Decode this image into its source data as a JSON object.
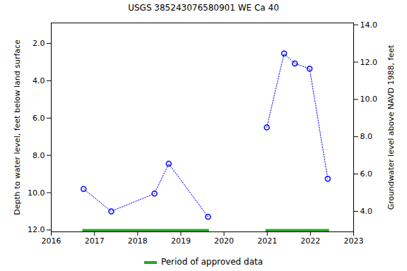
{
  "chart_data": {
    "type": "line",
    "title": "USGS 385243076580901 WE Ca 40",
    "x_label": null,
    "y_label": "Depth to water level, feet below land surface",
    "y2_label": "Groundwater level above NAVD 1988, feet",
    "x": [
      2016.75,
      2017.39,
      2018.39,
      2018.72,
      2019.63,
      2020.3,
      2020.99,
      2021.39,
      2021.64,
      2021.98,
      2022.4
    ],
    "series": [
      {
        "name": "Depth to water level",
        "color": "#0000ff",
        "marker": "circle",
        "line_style": "dotted",
        "values": [
          9.8,
          11.0,
          10.05,
          8.45,
          11.3,
          null,
          6.5,
          2.54,
          3.08,
          3.35,
          9.25
        ]
      }
    ],
    "approved_periods": {
      "name": "Period of approved data",
      "color": "#22a822",
      "ranges": [
        [
          2016.72,
          2019.65
        ],
        [
          2020.96,
          2022.43
        ]
      ]
    },
    "xlim": [
      2016,
      2023
    ],
    "xticks": [
      2016,
      2017,
      2018,
      2019,
      2020,
      2021,
      2022,
      2023
    ],
    "ylim": [
      12.1,
      0.9
    ],
    "yticks": [
      {
        "value": 2,
        "label": "2.0"
      },
      {
        "value": 4,
        "label": "4.0"
      },
      {
        "value": 6,
        "label": "6.0"
      },
      {
        "value": 8,
        "label": "8.0"
      },
      {
        "value": 10,
        "label": "10.0"
      },
      {
        "value": 12,
        "label": "12.0"
      }
    ],
    "y2lim": [
      2.9,
      14.1
    ],
    "y2ticks": [
      {
        "value": 4,
        "label": "4.0"
      },
      {
        "value": 6,
        "label": "6.0"
      },
      {
        "value": 8,
        "label": "8.0"
      },
      {
        "value": 10,
        "label": "10.0"
      },
      {
        "value": 12,
        "label": "12.0"
      },
      {
        "value": 14,
        "label": "14.0"
      }
    ],
    "grid": false,
    "legend": "bottom"
  }
}
